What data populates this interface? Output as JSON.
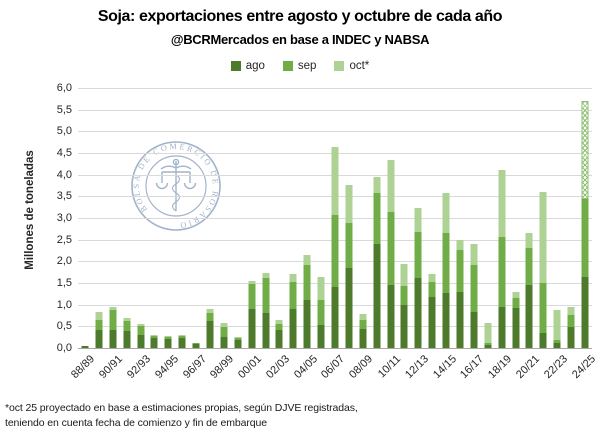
{
  "title": "Soja: exportaciones entre agosto y octubre de cada año",
  "subtitle": "@BCRMercados en base a INDEC y NABSA",
  "watermark_text": "BOLSA DE COMERCIO DE ROSARIO",
  "footnote_line1": "*oct 25 proyectado en base a estimaciones propias, según DJVE registradas,",
  "footnote_line2": "teniendo en cuenta fecha de comienzo y fin de  embarque",
  "colors": {
    "ago": "#4e7a2b",
    "sep": "#70ad47",
    "oct": "#aed194",
    "hatch": "#8fbf72",
    "gridline": "#d9d9d9",
    "axis": "#a6a6a6",
    "watermark": "#8ba1bd"
  },
  "chart_data": {
    "type": "bar",
    "stacked": true,
    "title": "Soja: exportaciones entre agosto y octubre de cada año",
    "ylabel": "Millones de toneladas",
    "ylim": [
      0,
      6
    ],
    "ytick_step": 0.5,
    "ytick_labels": [
      "0,0",
      "0,5",
      "1,0",
      "1,5",
      "2,0",
      "2,5",
      "3,0",
      "3,5",
      "4,0",
      "4,5",
      "5,0",
      "5,5",
      "6,0"
    ],
    "grid": true,
    "legend_position": "top",
    "categories": [
      "88/89",
      "89/90",
      "90/91",
      "91/92",
      "92/93",
      "93/94",
      "94/95",
      "95/96",
      "96/97",
      "97/98",
      "98/99",
      "99/00",
      "00/01",
      "01/02",
      "02/03",
      "03/04",
      "04/05",
      "05/06",
      "06/07",
      "07/08",
      "08/09",
      "09/10",
      "10/11",
      "11/12",
      "12/13",
      "13/14",
      "14/15",
      "15/16",
      "16/17",
      "17/18",
      "18/19",
      "19/20",
      "20/21",
      "21/22",
      "22/23",
      "23/24",
      "24/25"
    ],
    "x_tick_labels_shown": [
      "88/89",
      "90/91",
      "92/93",
      "94/95",
      "96/97",
      "98/99",
      "00/01",
      "02/03",
      "04/05",
      "06/07",
      "08/09",
      "10/11",
      "12/13",
      "14/15",
      "16/17",
      "18/19",
      "20/21",
      "22/23",
      "24/25"
    ],
    "series": [
      {
        "name": "ago",
        "color": "#4e7a2b",
        "values": [
          0.05,
          0.42,
          0.42,
          0.4,
          0.3,
          0.22,
          0.2,
          0.22,
          0.1,
          0.63,
          0.25,
          0.18,
          0.9,
          0.8,
          0.42,
          0.9,
          1.11,
          0.53,
          1.41,
          1.84,
          0.45,
          2.4,
          1.45,
          1.0,
          1.61,
          1.18,
          1.26,
          1.3,
          0.84,
          0.07,
          0.95,
          0.92,
          1.45,
          0.34,
          0.12,
          0.49,
          1.65
        ]
      },
      {
        "name": "sep",
        "color": "#70ad47",
        "values": [
          0.0,
          0.23,
          0.46,
          0.22,
          0.2,
          0.06,
          0.06,
          0.05,
          0.02,
          0.17,
          0.23,
          0.06,
          0.57,
          0.81,
          0.13,
          0.63,
          0.81,
          0.57,
          1.66,
          1.04,
          0.2,
          1.18,
          1.7,
          0.42,
          1.07,
          0.35,
          1.39,
          0.96,
          1.08,
          0.04,
          1.62,
          0.23,
          0.85,
          1.15,
          0.06,
          0.27,
          1.8
        ]
      },
      {
        "name": "oct*",
        "color": "#aed194",
        "values": [
          0.0,
          0.19,
          0.07,
          0.07,
          0.05,
          0.02,
          0.02,
          0.03,
          0.0,
          0.1,
          0.09,
          0.02,
          0.08,
          0.11,
          0.1,
          0.17,
          0.23,
          0.54,
          1.58,
          0.88,
          0.13,
          0.36,
          1.2,
          0.53,
          0.54,
          0.18,
          0.92,
          0.23,
          0.48,
          0.47,
          1.54,
          0.15,
          0.35,
          2.12,
          0.7,
          0.19,
          2.25
        ]
      }
    ],
    "annotations": "Last bar (24/25) oct* segment drawn hatched: projected value"
  }
}
